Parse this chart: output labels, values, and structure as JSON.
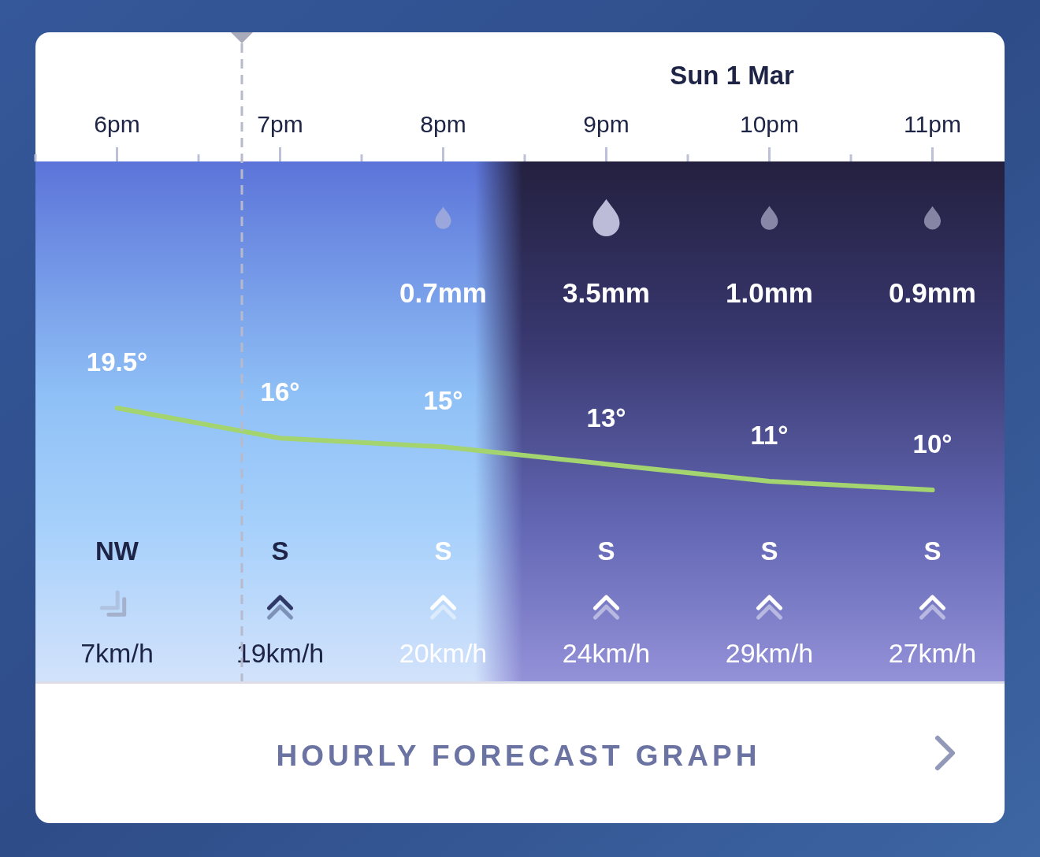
{
  "chart_data": {
    "type": "line",
    "categories": [
      "6pm",
      "7pm",
      "8pm",
      "9pm",
      "10pm",
      "11pm"
    ],
    "series": [
      {
        "color": "#a3d470",
        "values": [
          19.5,
          16,
          15,
          13,
          11,
          10
        ],
        "value_labels": [
          "19.5°",
          "16°",
          "15°",
          "13°",
          "11°",
          "10°"
        ]
      }
    ],
    "annotations": [
      "Sun 1 Mar",
      "0.7mm",
      "3.5mm",
      "1.0mm",
      "0.9mm",
      "NW",
      "S",
      "S",
      "S",
      "S",
      "S",
      "7km/h",
      "19km/h",
      "20km/h",
      "24km/h",
      "29km/h",
      "27km/h",
      "HOURLY FORECAST GRAPH"
    ]
  }
}
